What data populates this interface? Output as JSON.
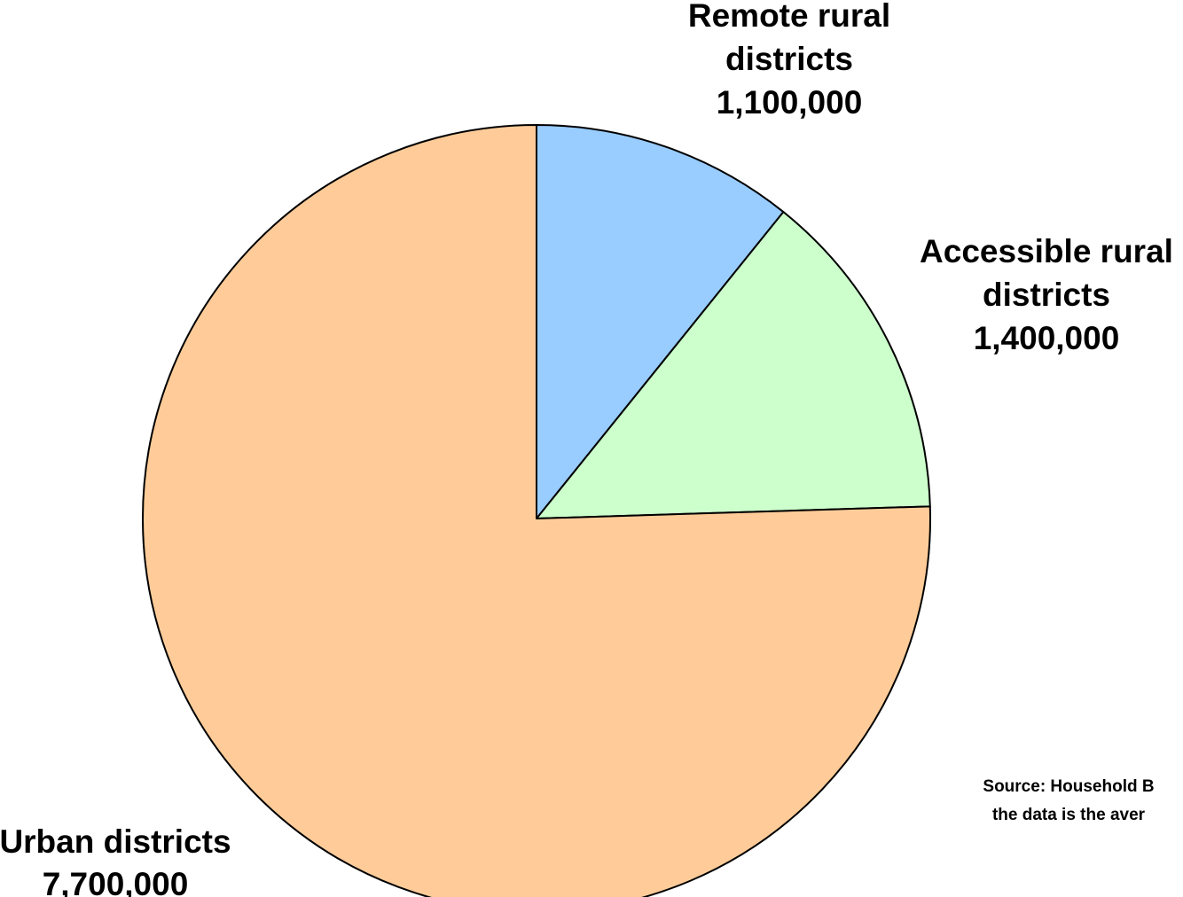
{
  "chart_data": {
    "type": "pie",
    "title": "",
    "start_angle_deg": 0,
    "direction": "clockwise",
    "slices": [
      {
        "key": "remote",
        "label_lines": [
          "Remote rural",
          "districts",
          "1,100,000"
        ],
        "value": 1100000,
        "color": "#99ccff"
      },
      {
        "key": "accessible",
        "label_lines": [
          "Accessible rural",
          "districts",
          "1,400,000"
        ],
        "value": 1400000,
        "color": "#ccffcc"
      },
      {
        "key": "urban",
        "label_lines": [
          "Urban districts",
          "7,700,000"
        ],
        "value": 7700000,
        "color": "#ffcc99"
      }
    ],
    "outline_color": "#000000",
    "source_note_lines": [
      "Source: Household B",
      "the data is the aver"
    ]
  }
}
